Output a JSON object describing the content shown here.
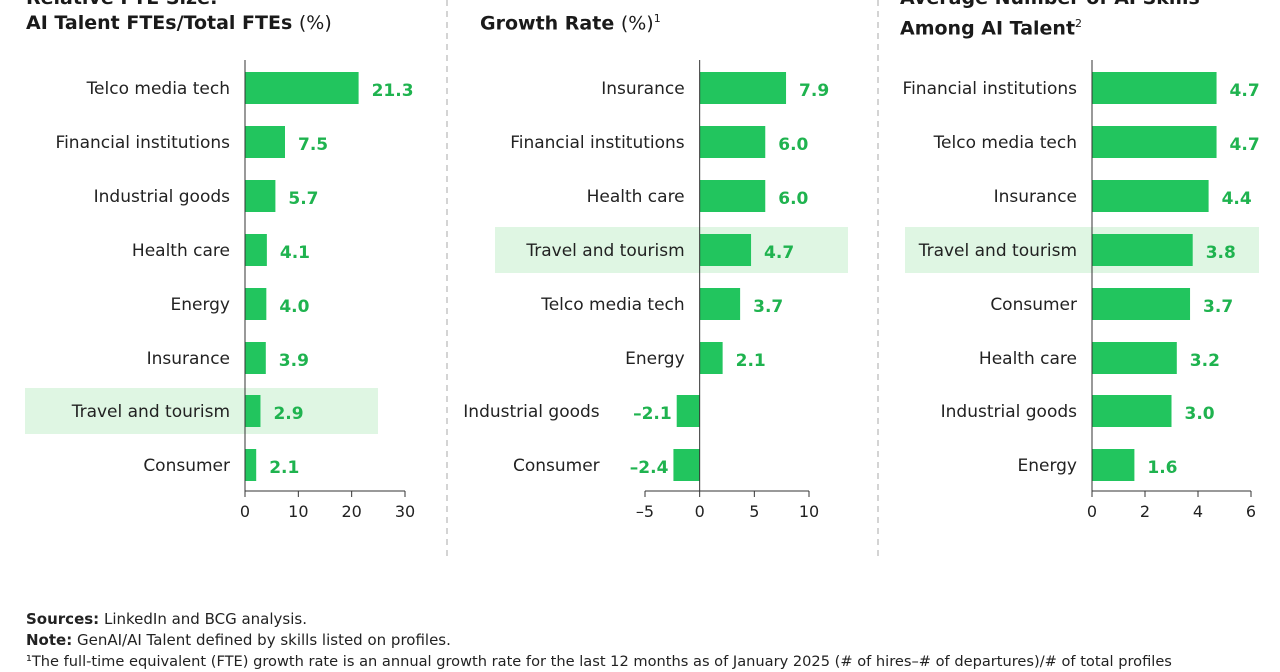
{
  "chart_data": [
    {
      "type": "bar",
      "orientation": "horizontal",
      "title_line1": "Relative FTE Size:",
      "title_main": "AI Talent FTEs/Total FTEs",
      "title_unit": "(%)",
      "title_sup": "",
      "categories": [
        "Telco media tech",
        "Financial institutions",
        "Industrial goods",
        "Health care",
        "Energy",
        "Insurance",
        "Travel and tourism",
        "Consumer"
      ],
      "values": [
        21.3,
        7.5,
        5.7,
        4.1,
        4.0,
        3.9,
        2.9,
        2.1
      ],
      "value_labels": [
        "21.3",
        "7.5",
        "5.7",
        "4.1",
        "4.0",
        "3.9",
        "2.9",
        "2.1"
      ],
      "xlim": [
        0,
        30
      ],
      "ticks": [
        "0",
        "10",
        "20",
        "30"
      ],
      "highlight": "Travel and tourism"
    },
    {
      "type": "bar",
      "orientation": "horizontal",
      "title_line1": "",
      "title_main": "Growth Rate",
      "title_unit": "(%)",
      "title_sup": "1",
      "categories": [
        "Insurance",
        "Financial institutions",
        "Health care",
        "Travel and tourism",
        "Telco media tech",
        "Energy",
        "Industrial goods",
        "Consumer"
      ],
      "values": [
        7.9,
        6.0,
        6.0,
        4.7,
        3.7,
        2.1,
        -2.1,
        -2.4
      ],
      "value_labels": [
        "7.9",
        "6.0",
        "6.0",
        "4.7",
        "3.7",
        "2.1",
        "–2.1",
        "–2.4"
      ],
      "xlim": [
        -5,
        10
      ],
      "ticks": [
        "–5",
        "0",
        "5",
        "10"
      ],
      "highlight": "Travel and tourism"
    },
    {
      "type": "bar",
      "orientation": "horizontal",
      "title_line1": "Average Number of AI Skills",
      "title_main": "Among AI Talent",
      "title_unit": "",
      "title_sup": "2",
      "categories": [
        "Financial institutions",
        "Telco media tech",
        "Insurance",
        "Travel and tourism",
        "Consumer",
        "Health care",
        "Industrial goods",
        "Energy"
      ],
      "values": [
        4.7,
        4.7,
        4.4,
        3.8,
        3.7,
        3.2,
        3.0,
        1.6
      ],
      "value_labels": [
        "4.7",
        "4.7",
        "4.4",
        "3.8",
        "3.7",
        "3.2",
        "3.0",
        "1.6"
      ],
      "xlim": [
        0,
        6
      ],
      "ticks": [
        "0",
        "2",
        "4",
        "6"
      ],
      "highlight": "Travel and tourism"
    }
  ],
  "colors": {
    "bar": "#22c55e",
    "value_text": "#1fb34f",
    "highlight": "#dff6e3",
    "axis": "#333333",
    "divider": "#aaaaaa"
  },
  "footer": {
    "sources_label": "Sources:",
    "sources_text": " LinkedIn and BCG analysis.",
    "note_label": "Note:",
    "note_text": " GenAI/AI Talent defined by skills listed on profiles.",
    "footnote1": "¹The full-time equivalent (FTE) growth rate is an annual growth rate for the last 12 months as of January 2025 (# of hires–# of departures)/# of total profiles"
  }
}
